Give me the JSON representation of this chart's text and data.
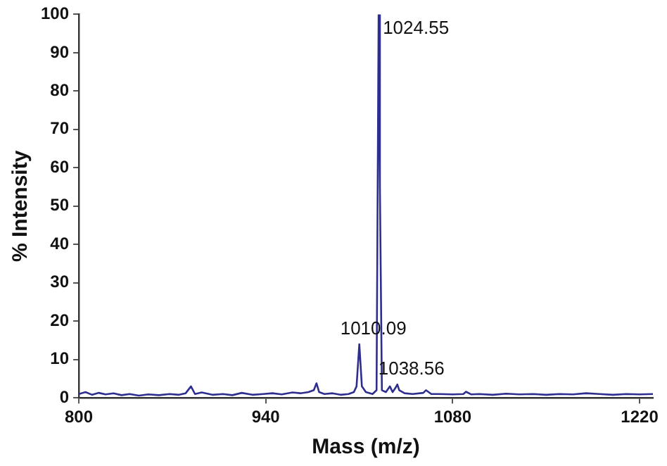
{
  "chart_data": {
    "type": "line",
    "xlabel": "Mass (m/z)",
    "ylabel": "% Intensity",
    "xlim": [
      800,
      1230
    ],
    "ylim": [
      0,
      100
    ],
    "xticks": [
      800,
      940,
      1080,
      1220
    ],
    "yticks": [
      0,
      10,
      20,
      30,
      40,
      50,
      60,
      70,
      80,
      90,
      100
    ],
    "grid": false,
    "legend": false,
    "marker": "none",
    "line_style": "solid",
    "series": [
      {
        "color": "#2e2e8f",
        "x": [
          800,
          805,
          810,
          815,
          820,
          826,
          832,
          838,
          845,
          852,
          860,
          868,
          875,
          880,
          884,
          887,
          892,
          900,
          908,
          915,
          922,
          930,
          938,
          945,
          952,
          960,
          966,
          972,
          976,
          978,
          980,
          984,
          990,
          996,
          1002,
          1006,
          1008,
          1010.09,
          1012,
          1015,
          1020,
          1023,
          1024.55,
          1025.5,
          1027,
          1030,
          1033,
          1035,
          1037,
          1038.56,
          1040,
          1044,
          1050,
          1058,
          1060,
          1064,
          1070,
          1080,
          1088,
          1090,
          1094,
          1100,
          1110,
          1120,
          1130,
          1140,
          1150,
          1160,
          1170,
          1180,
          1190,
          1200,
          1210,
          1220,
          1230
        ],
        "values": [
          1,
          1.5,
          0.8,
          1.3,
          0.9,
          1.2,
          0.7,
          1,
          0.6,
          0.9,
          0.7,
          1,
          0.8,
          1.2,
          3,
          1,
          1.4,
          0.8,
          1,
          0.7,
          1.3,
          0.8,
          1,
          1.2,
          0.9,
          1.4,
          1.2,
          1.5,
          2,
          3.8,
          1.5,
          1,
          1.2,
          0.8,
          1,
          1.5,
          3,
          14,
          3,
          1.5,
          1,
          2,
          100,
          55,
          2,
          1.5,
          3,
          1.5,
          2.5,
          3.5,
          2,
          1.2,
          1,
          1.3,
          2,
          1,
          1,
          0.9,
          1,
          1.6,
          0.9,
          1,
          0.8,
          1.1,
          0.9,
          1,
          0.8,
          1,
          0.9,
          1.2,
          1,
          0.8,
          1,
          0.9,
          1
        ]
      }
    ],
    "annotations": [
      {
        "text": "1024.55",
        "x": 1024.55,
        "y": 100
      },
      {
        "text": "1010.09",
        "x": 1010.09,
        "y": 14
      },
      {
        "text": "1038.56",
        "x": 1038.56,
        "y": 3.5
      }
    ]
  }
}
